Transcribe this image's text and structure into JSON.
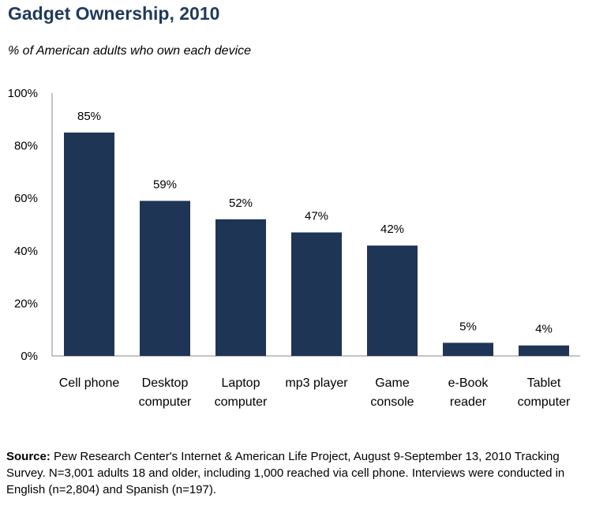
{
  "chart_data": {
    "type": "bar",
    "title": "Gadget Ownership, 2010",
    "subtitle": "% of American adults who own each device",
    "categories": [
      [
        "Cell phone"
      ],
      [
        "Desktop",
        "computer"
      ],
      [
        "Laptop",
        "computer"
      ],
      [
        "mp3 player"
      ],
      [
        "Game",
        "console"
      ],
      [
        "e-Book",
        "reader"
      ],
      [
        "Tablet",
        "computer"
      ]
    ],
    "values": [
      85,
      59,
      52,
      47,
      42,
      5,
      4
    ],
    "data_labels": [
      "85%",
      "59%",
      "52%",
      "47%",
      "42%",
      "5%",
      "4%"
    ],
    "yticks": [
      "0%",
      "20%",
      "40%",
      "60%",
      "80%",
      "100%"
    ],
    "ylim": [
      0,
      100
    ],
    "grid": false,
    "bar_color": "#1f3556"
  },
  "source": {
    "label": "Source:",
    "text": "Pew Research Center's Internet & American Life Project, August 9-September 13, 2010 Tracking Survey. N=3,001 adults 18 and older, including 1,000 reached via cell phone. Interviews were conducted in English (n=2,804) and Spanish (n=197)."
  }
}
